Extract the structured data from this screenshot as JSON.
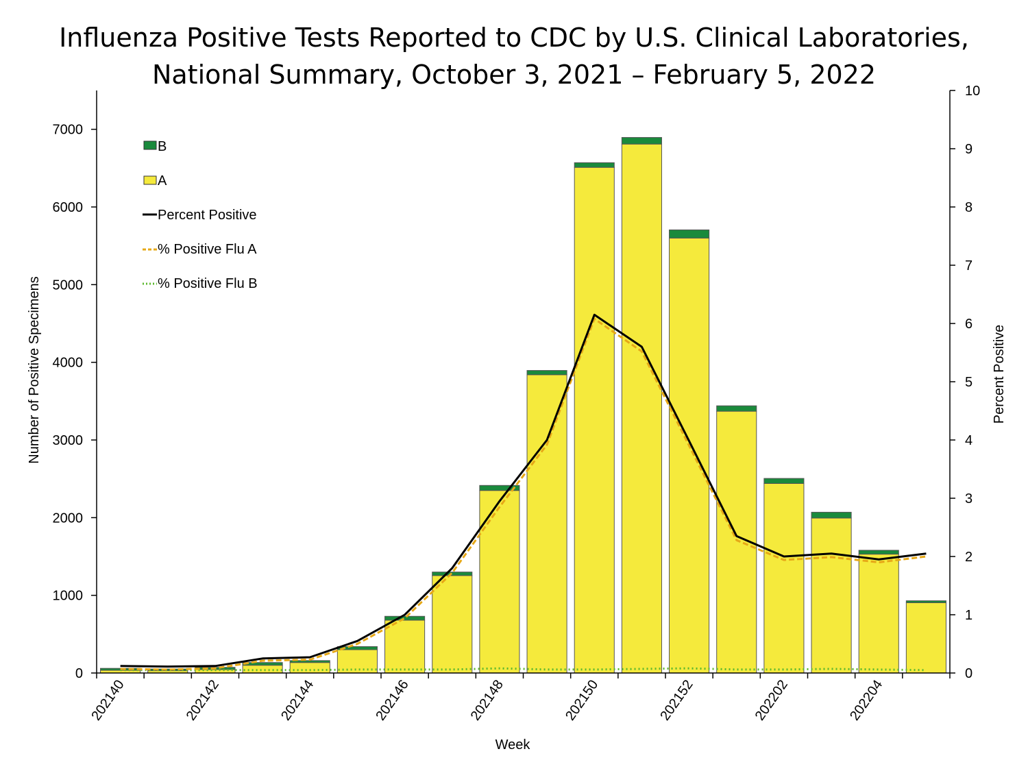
{
  "chart_data": {
    "type": "bar",
    "title_line1": "Influenza Positive Tests Reported to CDC by U.S. Clinical Laboratories,",
    "title_line2": "National Summary, October 3, 2021 – February 5, 2022",
    "xlabel": "Week",
    "ylabel": "Number of Positive Specimens",
    "y2label": "Percent Positive",
    "ylim": [
      0,
      7500
    ],
    "y2lim": [
      0,
      10
    ],
    "yticks": [
      "0",
      "1000",
      "2000",
      "3000",
      "4000",
      "5000",
      "6000",
      "7000"
    ],
    "y2ticks": [
      "0",
      "1",
      "2",
      "3",
      "4",
      "5",
      "6",
      "7",
      "8",
      "9",
      "10"
    ],
    "weeks": [
      "202140",
      "202141",
      "202142",
      "202143",
      "202144",
      "202145",
      "202146",
      "202147",
      "202148",
      "202149",
      "202150",
      "202151",
      "202152",
      "202201",
      "202202",
      "202203",
      "202204",
      "202205"
    ],
    "xtick_labels": [
      "202140",
      "202142",
      "202144",
      "202146",
      "202148",
      "202150",
      "202152",
      "202202",
      "202204"
    ],
    "series": [
      {
        "name": "A",
        "kind": "bar",
        "color": "#f5ea3c",
        "values": [
          35,
          30,
          45,
          100,
          135,
          300,
          680,
          1255,
          2350,
          3840,
          6510,
          6810,
          5600,
          3370,
          2440,
          1995,
          1530,
          905
        ]
      },
      {
        "name": "B",
        "kind": "bar",
        "color": "#1a8a3c",
        "values": [
          25,
          22,
          28,
          35,
          25,
          40,
          50,
          45,
          65,
          55,
          60,
          85,
          105,
          70,
          65,
          75,
          50,
          25
        ]
      },
      {
        "name": "Percent Positive",
        "kind": "line",
        "axis": "right",
        "color": "#000000",
        "values": [
          0.12,
          0.11,
          0.12,
          0.25,
          0.27,
          0.55,
          1.0,
          1.8,
          2.95,
          4.0,
          6.15,
          5.6,
          3.98,
          2.35,
          2.0,
          2.05,
          1.95,
          2.05
        ]
      },
      {
        "name": "% Positive Flu A",
        "kind": "line",
        "axis": "right",
        "color": "#e6a817",
        "dash": "dashed",
        "values": [
          0.07,
          0.06,
          0.08,
          0.21,
          0.23,
          0.5,
          0.94,
          1.72,
          2.85,
          3.92,
          6.08,
          5.52,
          3.9,
          2.28,
          1.94,
          1.99,
          1.9,
          2.0
        ]
      },
      {
        "name": "% Positive Flu B",
        "kind": "line",
        "axis": "right",
        "color": "#5cb82e",
        "dash": "dotted",
        "values": [
          0.05,
          0.05,
          0.05,
          0.05,
          0.05,
          0.06,
          0.06,
          0.06,
          0.08,
          0.06,
          0.06,
          0.07,
          0.08,
          0.06,
          0.06,
          0.07,
          0.06,
          0.05
        ]
      }
    ],
    "legend": [
      "B",
      "A",
      "Percent Positive",
      "% Positive Flu A",
      "% Positive Flu B"
    ],
    "legend_position": "top-left"
  }
}
